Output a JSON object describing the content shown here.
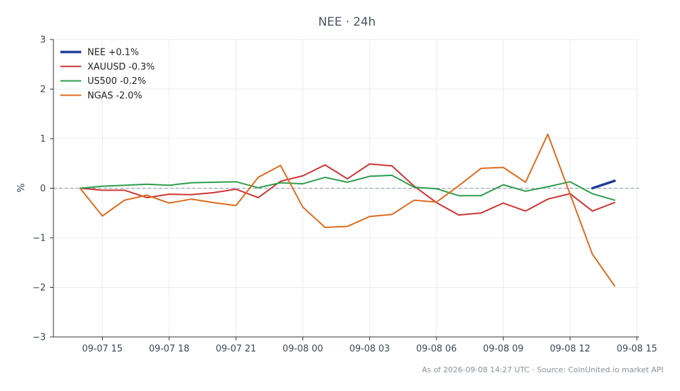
{
  "chart_data": {
    "type": "line",
    "title": "NEE · 24h",
    "xlabel": "",
    "ylabel": "%",
    "ylim": [
      -3,
      3
    ],
    "yticks": [
      3,
      2,
      1,
      0,
      -1,
      -2,
      -3
    ],
    "ytick_labels": [
      "3",
      "2",
      "1",
      "0",
      "−1",
      "−2",
      "−3"
    ],
    "xtick_labels": [
      "09-07 15",
      "09-07 18",
      "09-07 21",
      "09-08 00",
      "09-08 03",
      "09-08 06",
      "09-08 09",
      "09-08 12",
      "09-08 15"
    ],
    "grid": true,
    "legend_position": "top-left",
    "baseline": 0,
    "x": [
      "09-07 14:00",
      "09-07 15:00",
      "09-07 16:00",
      "09-07 17:00",
      "09-07 18:00",
      "09-07 19:00",
      "09-07 20:00",
      "09-07 21:00",
      "09-07 22:00",
      "09-07 23:00",
      "09-08 00:00",
      "09-08 01:00",
      "09-08 02:00",
      "09-08 03:00",
      "09-08 04:00",
      "09-08 05:00",
      "09-08 06:00",
      "09-08 07:00",
      "09-08 08:00",
      "09-08 09:00",
      "09-08 10:00",
      "09-08 11:00",
      "09-08 12:00",
      "09-08 13:00",
      "09-08 14:00"
    ],
    "series": [
      {
        "name": "NEE +0.1%",
        "color": "#1f3d99",
        "values": [
          null,
          null,
          null,
          null,
          null,
          null,
          null,
          null,
          null,
          null,
          null,
          null,
          null,
          null,
          null,
          null,
          null,
          null,
          null,
          null,
          null,
          null,
          null,
          0.0,
          0.15
        ]
      },
      {
        "name": "XAUUSD -0.3%",
        "color": "#cc3333",
        "values": [
          0.0,
          -0.04,
          -0.04,
          -0.19,
          -0.12,
          -0.13,
          -0.09,
          -0.02,
          -0.19,
          0.14,
          0.25,
          0.47,
          0.19,
          0.49,
          0.45,
          0.04,
          -0.29,
          -0.54,
          -0.5,
          -0.3,
          -0.46,
          -0.22,
          -0.11,
          -0.46,
          -0.29
        ]
      },
      {
        "name": "US500 -0.2%",
        "color": "#2a9d4a",
        "values": [
          0.0,
          0.04,
          0.06,
          0.08,
          0.06,
          0.11,
          0.12,
          0.13,
          0.01,
          0.11,
          0.09,
          0.22,
          0.12,
          0.24,
          0.26,
          0.02,
          -0.01,
          -0.15,
          -0.15,
          0.07,
          -0.06,
          0.03,
          0.13,
          -0.11,
          -0.24
        ]
      },
      {
        "name": "NGAS -2.0%",
        "color": "#de6a1d",
        "values": [
          0.0,
          -0.56,
          -0.24,
          -0.14,
          -0.3,
          -0.22,
          -0.29,
          -0.35,
          0.22,
          0.46,
          -0.38,
          -0.79,
          -0.77,
          -0.57,
          -0.53,
          -0.24,
          -0.28,
          0.05,
          0.4,
          0.42,
          0.12,
          1.09,
          -0.12,
          -1.33,
          -1.97
        ]
      }
    ]
  },
  "footer": "As of 2026-09-08 14:27 UTC · Source: CoinUnited.io market API"
}
